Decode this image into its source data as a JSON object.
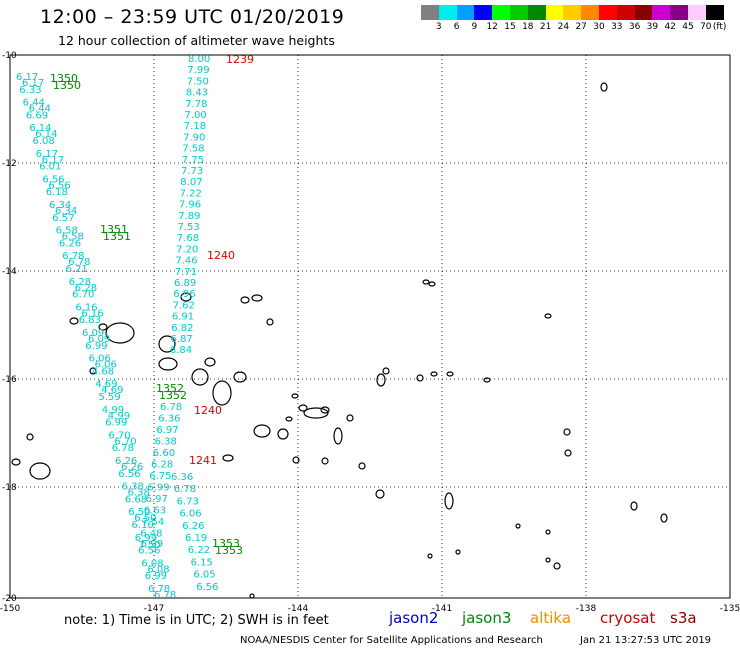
{
  "header": {
    "title": "12:00 – 23:59 UTC 01/20/2019",
    "subtitle": "12 hour collection of altimeter wave heights"
  },
  "legend": {
    "colors": [
      "#808080",
      "#00eeee",
      "#00a0ff",
      "#0000ff",
      "#00ff00",
      "#00cc00",
      "#008800",
      "#ffff00",
      "#ffcc00",
      "#ff8800",
      "#ff0000",
      "#cc0000",
      "#880000",
      "#cc00cc",
      "#880088",
      "#ffccff",
      "#000000"
    ],
    "labels": [
      "3",
      "6",
      "9",
      "12",
      "15",
      "18",
      "21",
      "24",
      "27",
      "30",
      "33",
      "36",
      "39",
      "42",
      "45",
      "70",
      "(ft)"
    ]
  },
  "axes": {
    "lon_labels": [
      "-150",
      "-147",
      "-144",
      "-141",
      "-138",
      "-135"
    ],
    "lat_labels": [
      "-10",
      "-12",
      "-14",
      "-16",
      "-18",
      "-20"
    ]
  },
  "tracks": {
    "cyan_left": {
      "color": "#00cccc",
      "labels": [
        "6.17",
        "6.33",
        "6.44",
        "6.69",
        "6.14",
        "6.08",
        "6.17",
        "6.01",
        "6.56",
        "6.18",
        "6.34",
        "6.57",
        "6.58",
        "6.26",
        "6.78",
        "6.21",
        "6.28",
        "6.70",
        "6.16",
        "6.83",
        "6.09",
        "6.99",
        "6.06",
        "4.68",
        "4.69",
        "5.59",
        "4.99",
        "6.99",
        "6.70",
        "6.78",
        "6.26",
        "6.56",
        "6.38",
        "6.68",
        "6.50",
        "6.10",
        "6.99",
        "6.56",
        "6.08",
        "6.99",
        "6.78"
      ]
    },
    "cyan_right_top": {
      "color": "#00cccc",
      "labels": [
        "8.00",
        "7.99",
        "7.50",
        "8.43",
        "7.78",
        "7.00",
        "7.18",
        "7.90",
        "7.58",
        "7.75",
        "7.73",
        "8.07",
        "7.22",
        "7.96",
        "7.89",
        "7.53",
        "7.68",
        "7.20",
        "7.46",
        "7.71",
        "6.89",
        "6.96",
        "7.62",
        "6.91",
        "6.82",
        "6.87",
        "6.84"
      ]
    },
    "cyan_mid_cols": {
      "color": "#00cccc",
      "labels": [
        "6.78",
        "6.36",
        "6.97",
        "6.38",
        "6.60",
        "6.28",
        "6.75",
        "6.99",
        "6.97",
        "6.63",
        "7.54",
        "6.48",
        "7.50",
        "6.36",
        "6.78",
        "6.73",
        "6.06",
        "6.26",
        "6.19",
        "6.22",
        "6.15",
        "6.05",
        "6.56"
      ]
    },
    "green_labels": [
      "1350",
      "1351",
      "1352",
      "1353"
    ],
    "red_labels": [
      "1239",
      "1240",
      "1240",
      "1241"
    ]
  },
  "footer": {
    "note": "note:  1) Time is in UTC;  2) SWH is in feet",
    "satellites": [
      {
        "name": "jason2",
        "color": "#0000cc"
      },
      {
        "name": "jason3",
        "color": "#008800"
      },
      {
        "name": "altika",
        "color": "#ff8800"
      },
      {
        "name": "cryosat",
        "color": "#cc0000"
      },
      {
        "name": "s3a",
        "color": "#880000"
      }
    ],
    "credit": "NOAA/NESDIS Center for Satellite Applications and Research",
    "timestamp": "Jan 21 13:27:53 UTC 2019"
  }
}
